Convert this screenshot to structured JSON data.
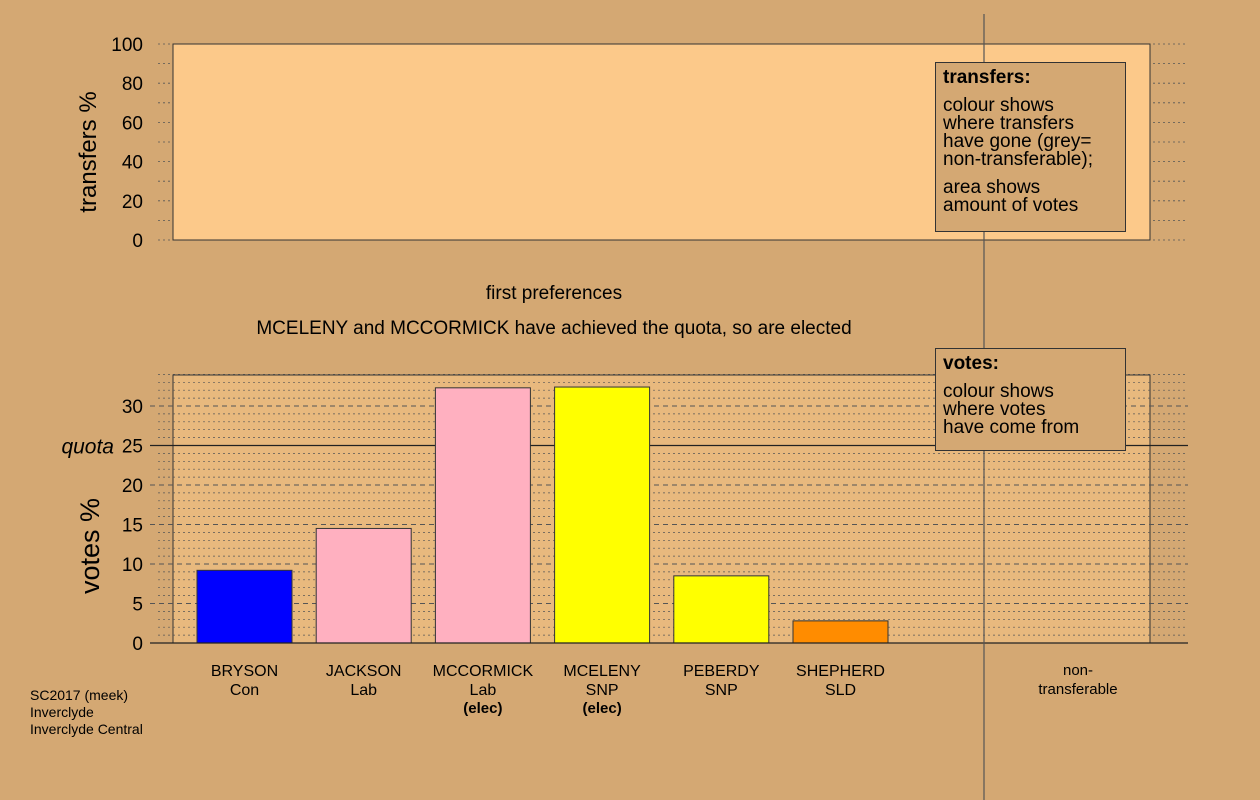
{
  "chart_data": [
    {
      "type": "area",
      "ylabel": "transfers %",
      "ylim": [
        0,
        100
      ],
      "yticks": [
        0,
        20,
        40,
        60,
        80,
        100
      ],
      "series": []
    },
    {
      "type": "bar",
      "ylabel": "votes %",
      "ylim": [
        0,
        34
      ],
      "yticks": [
        0,
        5,
        10,
        15,
        20,
        25,
        30
      ],
      "quota": 25,
      "quota_label": "quota",
      "categories": [
        {
          "name": "BRYSON",
          "party": "Con",
          "status": ""
        },
        {
          "name": "JACKSON",
          "party": "Lab",
          "status": ""
        },
        {
          "name": "MCCORMICK",
          "party": "Lab",
          "status": "(elec)"
        },
        {
          "name": "MCELENY",
          "party": "SNP",
          "status": "(elec)"
        },
        {
          "name": "PEBERDY",
          "party": "SNP",
          "status": ""
        },
        {
          "name": "SHEPHERD",
          "party": "SLD",
          "status": ""
        }
      ],
      "values": [
        9.2,
        14.5,
        32.3,
        32.4,
        8.5,
        2.8
      ],
      "colors": [
        "#0000ff",
        "#ffb0c0",
        "#ffb0c0",
        "#ffff00",
        "#ffff00",
        "#ff8c00"
      ],
      "nontransferable_label": [
        "non-",
        "transferable"
      ]
    }
  ],
  "stage_title": "first preferences",
  "stage_message": "MCELENY and MCCORMICK have achieved the quota, so are elected",
  "legend_transfers": {
    "title": "transfers:",
    "lines1": [
      "colour shows",
      "where transfers",
      "have gone (grey=",
      "non-transferable);"
    ],
    "lines2": [
      "area shows",
      "amount of votes"
    ]
  },
  "legend_votes": {
    "title": "votes:",
    "lines": [
      "colour shows",
      "where votes",
      "have come from"
    ]
  },
  "footnote": [
    "SC2017 (meek)",
    "Inverclyde",
    "Inverclyde Central"
  ],
  "colors": {
    "background": "#d4a873",
    "panel": "#fcc98a"
  }
}
